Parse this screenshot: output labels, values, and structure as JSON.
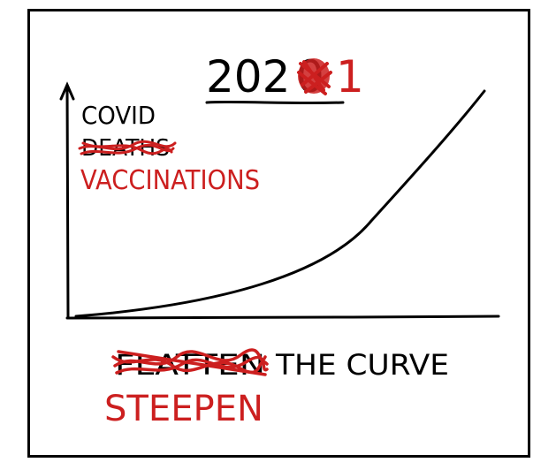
{
  "title": {
    "base": "202",
    "struck_digit": "0",
    "new_digit": "1"
  },
  "y_axis_label": {
    "line1": "COVID",
    "struck_word": "DEATHS",
    "replacement": "VACCINATIONS"
  },
  "caption": {
    "struck_word": "FLATTEN",
    "rest": "THE CURVE",
    "replacement": "STEEPEN"
  },
  "colors": {
    "ink": "#000000",
    "correction": "#cc1f1f",
    "background": "#ffffff"
  }
}
